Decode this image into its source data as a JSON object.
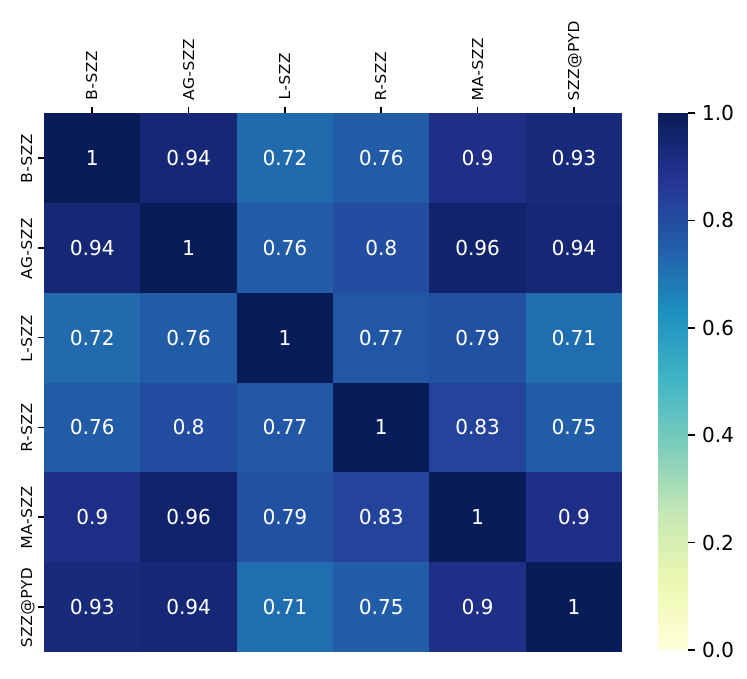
{
  "figure": {
    "background": "#ffffff",
    "annotation_color": "#ffffff",
    "label_color": "#000000",
    "tick_color": "#000000"
  },
  "chart_data": {
    "type": "heatmap",
    "title": "",
    "xlabel": "",
    "ylabel": "",
    "categories": [
      "B-SZZ",
      "AG-SZZ",
      "L-SZZ",
      "R-SZZ",
      "MA-SZZ",
      "SZZ@PYD"
    ],
    "rows": [
      "B-SZZ",
      "AG-SZZ",
      "L-SZZ",
      "R-SZZ",
      "MA-SZZ",
      "SZZ@PYD"
    ],
    "matrix": [
      [
        1,
        0.94,
        0.72,
        0.76,
        0.9,
        0.93
      ],
      [
        0.94,
        1,
        0.76,
        0.8,
        0.96,
        0.94
      ],
      [
        0.72,
        0.76,
        1,
        0.77,
        0.79,
        0.71
      ],
      [
        0.76,
        0.8,
        0.77,
        1,
        0.83,
        0.75
      ],
      [
        0.9,
        0.96,
        0.79,
        0.83,
        1,
        0.9
      ],
      [
        0.93,
        0.94,
        0.71,
        0.75,
        0.9,
        1
      ]
    ],
    "vmin": 0,
    "vmax": 1,
    "grid": false,
    "legend_position": "right",
    "colormap": {
      "name": "YlGnBu",
      "anchors": [
        [
          0.0,
          "#ffffd9"
        ],
        [
          0.125,
          "#edf8b1"
        ],
        [
          0.25,
          "#c7e9b4"
        ],
        [
          0.375,
          "#7fcdbb"
        ],
        [
          0.5,
          "#41b6c4"
        ],
        [
          0.625,
          "#1d91c0"
        ],
        [
          0.75,
          "#225ea8"
        ],
        [
          0.875,
          "#253494"
        ],
        [
          1.0,
          "#081d58"
        ]
      ]
    },
    "colorbar_ticks": [
      {
        "value": 1.0,
        "label": "1.0"
      },
      {
        "value": 0.8,
        "label": "0.8"
      },
      {
        "value": 0.6,
        "label": "0.6"
      },
      {
        "value": 0.4,
        "label": "0.4"
      },
      {
        "value": 0.2,
        "label": "0.2"
      },
      {
        "value": 0.0,
        "label": "0.0"
      }
    ]
  }
}
